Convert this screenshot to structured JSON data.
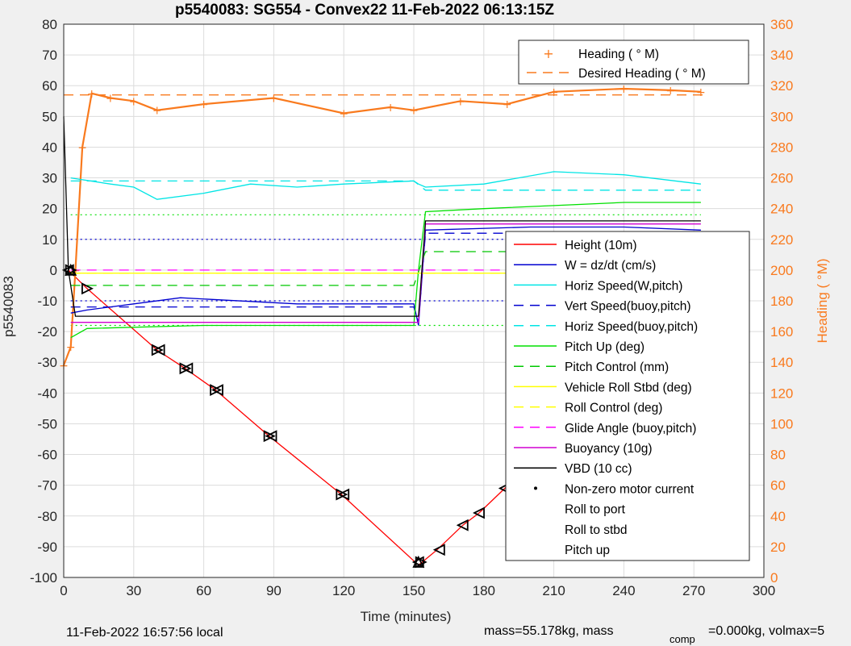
{
  "chart_data": {
    "type": "line",
    "title": "p5540083: SG554 - Convex22 11-Feb-2022 06:13:15Z",
    "xlabel": "Time (minutes)",
    "ylabel": "p5540083",
    "y2label": "Heading (  °M)",
    "xlim": [
      0,
      300
    ],
    "ylim": [
      -100,
      80
    ],
    "y2lim": [
      0,
      360
    ],
    "xticks": [
      "0",
      "30",
      "60",
      "90",
      "120",
      "150",
      "180",
      "210",
      "240",
      "270",
      "300"
    ],
    "yticks": [
      "80",
      "70",
      "60",
      "50",
      "40",
      "30",
      "20",
      "10",
      "0",
      "-10",
      "-20",
      "-30",
      "-40",
      "-50",
      "-60",
      "-70",
      "-80",
      "-90",
      "-100"
    ],
    "y2ticks": [
      "360",
      "340",
      "320",
      "300",
      "280",
      "260",
      "240",
      "220",
      "200",
      "180",
      "160",
      "140",
      "120",
      "100",
      "80",
      "60",
      "40",
      "20",
      "0"
    ],
    "grid": true,
    "legend_top": [
      "Heading (  ° M)",
      "Desired Heading (  ° M)"
    ],
    "legend_main": [
      "Height (10m)",
      "W = dz/dt (cm/s)",
      "Horiz Speed(W,pitch)",
      "Vert Speed(buoy,pitch)",
      "Horiz Speed(buoy,pitch)",
      "Pitch Up (deg)",
      "Pitch Control (mm)",
      "Vehicle Roll Stbd (deg)",
      "Roll Control (deg)",
      "Glide Angle (buoy,pitch)",
      "Buoyancy (10g)",
      "VBD (10 cc)",
      "Non-zero motor current",
      "Roll to port",
      "Roll to stbd",
      "Pitch up"
    ],
    "series": [
      {
        "name": "Height (10m)",
        "color": "#ff0000",
        "x": [
          2,
          10,
          40,
          52,
          65,
          88,
          119,
          152,
          160,
          171,
          178,
          189,
          207,
          217,
          224,
          239,
          249,
          256,
          264,
          273
        ],
        "y": [
          0,
          -6,
          -26,
          -32,
          -39,
          -54,
          -73,
          -96,
          -91,
          -83,
          -79,
          -71,
          -55,
          -46,
          -40,
          -27,
          -20,
          -14,
          -7,
          -1
        ]
      },
      {
        "name": "Heading (  ° M)",
        "color": "#f97a1e",
        "axis": "right",
        "x": [
          0,
          3,
          5,
          8,
          12,
          20,
          30,
          40,
          60,
          90,
          120,
          140,
          150,
          170,
          190,
          210,
          240,
          260,
          273
        ],
        "y": [
          138,
          150,
          200,
          280,
          315,
          312,
          310,
          304,
          308,
          312,
          302,
          306,
          304,
          310,
          308,
          316,
          318,
          317,
          316
        ]
      },
      {
        "name": "Desired Heading (  ° M)",
        "color": "#f97a1e",
        "axis": "right",
        "x": [
          0,
          275
        ],
        "y": [
          314,
          314
        ]
      },
      {
        "name": "W = dz/dt (cm/s)",
        "color": "#0000d0",
        "x": [
          3,
          10,
          30,
          50,
          100,
          150,
          152,
          155,
          200,
          240,
          273
        ],
        "y": [
          -14,
          -13,
          -11,
          -9,
          -11,
          -11,
          -18,
          13,
          14,
          14,
          13
        ]
      },
      {
        "name": "Vert Speed(buoy,pitch)",
        "color": "#0000d0",
        "x": [
          3,
          150,
          152,
          155,
          273
        ],
        "y": [
          -12,
          -12,
          -17,
          12,
          12
        ]
      },
      {
        "name": "Horiz Speed(W,pitch)",
        "color": "#00e5e5",
        "x": [
          3,
          20,
          30,
          40,
          60,
          80,
          100,
          120,
          150,
          152,
          155,
          180,
          210,
          240,
          273
        ],
        "y": [
          30,
          28,
          27,
          23,
          25,
          28,
          27,
          28,
          29,
          28,
          27,
          28,
          32,
          31,
          28
        ]
      },
      {
        "name": "Horiz Speed(buoy,pitch)",
        "color": "#00e5e5",
        "x": [
          3,
          150,
          155,
          273
        ],
        "y": [
          29,
          29,
          26,
          26
        ]
      },
      {
        "name": "Pitch Up (deg)",
        "color": "#00e000",
        "x": [
          3,
          10,
          60,
          150,
          152,
          155,
          180,
          210,
          240,
          273
        ],
        "y": [
          -22,
          -19,
          -18,
          -18,
          0,
          19,
          20,
          21,
          22,
          22
        ]
      },
      {
        "name": "Pitch Control (mm)",
        "color": "#00c800",
        "x": [
          3,
          150,
          155,
          273
        ],
        "y": [
          -5,
          -5,
          6,
          6
        ]
      },
      {
        "name": "Vehicle Roll Stbd (deg)",
        "color": "#ffff00",
        "x": [
          3,
          150,
          155,
          273
        ],
        "y": [
          -1,
          -1,
          -1,
          -1
        ]
      },
      {
        "name": "Roll Control (deg)",
        "color": "#ffff00",
        "x": [
          3,
          273
        ],
        "y": [
          -1,
          -1
        ]
      },
      {
        "name": "Glide Angle (buoy,pitch)",
        "color": "#ff00ff",
        "x": [
          3,
          150,
          155,
          273
        ],
        "y": [
          0,
          0,
          0,
          0
        ]
      },
      {
        "name": "Buoyancy (10g)",
        "color": "#d000d0",
        "x": [
          3,
          150,
          152,
          155,
          273
        ],
        "y": [
          -17,
          -17,
          -17,
          15,
          15
        ]
      },
      {
        "name": "VBD (10 cc)",
        "color": "#000000",
        "x": [
          0,
          2,
          5,
          150,
          152,
          155,
          273
        ],
        "y": [
          50,
          0,
          -15,
          -15,
          -15,
          16,
          16
        ]
      }
    ],
    "reference_lines": [
      {
        "color": "#00e000",
        "style": "dotted",
        "y": [
          18,
          -18
        ]
      },
      {
        "color": "#0000d0",
        "style": "dotted",
        "y": [
          10,
          -10
        ]
      }
    ],
    "markers": {
      "roll_to_port": {
        "x": [
          2,
          41,
          53,
          66,
          89,
          120,
          152,
          161,
          171,
          178,
          189,
          208,
          218,
          225,
          240,
          250,
          257,
          265,
          274
        ],
        "y": [
          0,
          -26,
          -32,
          -39,
          -54,
          -73,
          -95,
          -91,
          -83,
          -79,
          -71,
          -55,
          -46,
          -40,
          -27,
          -20,
          -14,
          -7,
          -1
        ]
      },
      "roll_to_stbd": {
        "x": [
          3,
          10,
          40,
          52,
          65,
          88,
          119,
          153,
          207,
          239,
          249,
          264
        ],
        "y": [
          0,
          -6,
          -26,
          -32,
          -39,
          -54,
          -73,
          -95,
          -55,
          -27,
          -20,
          -7
        ]
      },
      "pitch_up": {
        "x": [
          3,
          152
        ],
        "y": [
          0,
          -95
        ]
      }
    }
  },
  "footer": {
    "local_time": "11-Feb-2022 16:57:56 local",
    "mass_text": "mass=55.178kg, mass",
    "comp_sub": "comp",
    "comp_text": "=0.000kg, volmax=5"
  }
}
